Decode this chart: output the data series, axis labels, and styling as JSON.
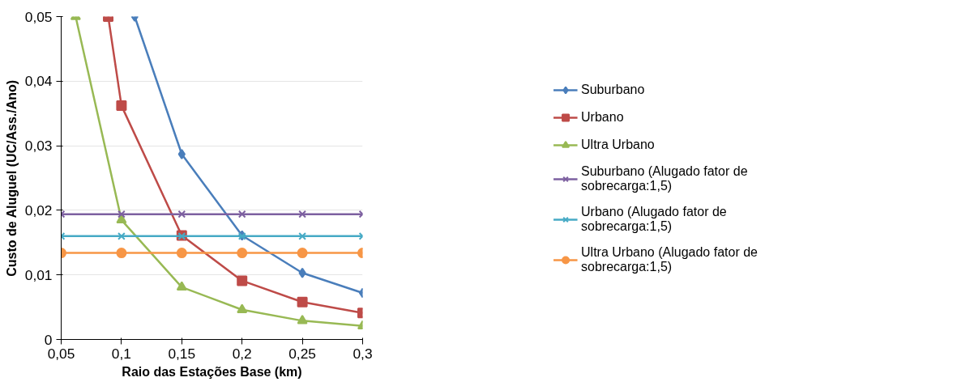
{
  "chart_data": {
    "type": "line",
    "xlabel": "Raio das Estações Base (km)",
    "ylabel": "Custo de Aluguel (UC/Ass./Ano)",
    "xlim": [
      0.05,
      0.3
    ],
    "ylim": [
      0,
      0.05
    ],
    "xticks": [
      {
        "value": 0.05,
        "label": "0,05"
      },
      {
        "value": 0.1,
        "label": "0,1"
      },
      {
        "value": 0.15,
        "label": "0,15"
      },
      {
        "value": 0.2,
        "label": "0,2"
      },
      {
        "value": 0.25,
        "label": "0,25"
      },
      {
        "value": 0.3,
        "label": "0,3"
      }
    ],
    "yticks": [
      0,
      {
        "value": 0.01,
        "label": "0,01"
      },
      {
        "value": 0.02,
        "label": "0,02"
      },
      {
        "value": 0.03,
        "label": "0,03"
      },
      {
        "value": 0.04,
        "label": "0,04"
      },
      {
        "value": 0.05,
        "label": "0,05"
      }
    ],
    "grid": "y",
    "legend": "right",
    "series": [
      {
        "name": "Suburbano",
        "color": "#4a7ebb",
        "marker": "diamond",
        "x": [
          0.111,
          0.15,
          0.2,
          0.25,
          0.3
        ],
        "values": [
          0.05,
          0.0287,
          0.0161,
          0.0103,
          0.0072
        ]
      },
      {
        "name": "Urbano",
        "color": "#be4b48",
        "marker": "square",
        "x": [
          0.089,
          0.1,
          0.15,
          0.2,
          0.25,
          0.3
        ],
        "values": [
          0.05,
          0.0362,
          0.0161,
          0.0091,
          0.0058,
          0.0041
        ]
      },
      {
        "name": "Ultra Urbano",
        "color": "#98b954",
        "marker": "triangle",
        "x": [
          0.062,
          0.1,
          0.15,
          0.2,
          0.25,
          0.3
        ],
        "values": [
          0.05,
          0.0185,
          0.0081,
          0.0046,
          0.0029,
          0.0021
        ]
      },
      {
        "name": "Suburbano (Alugado fator de sobrecarga:1,5)",
        "color": "#7d60a0",
        "marker": "cross",
        "x": [
          0.05,
          0.1,
          0.15,
          0.2,
          0.25,
          0.3
        ],
        "values": [
          0.0194,
          0.0194,
          0.0194,
          0.0194,
          0.0194,
          0.0194
        ]
      },
      {
        "name": "Urbano (Alugado fator de sobrecarga:1,5)",
        "color": "#46aac5",
        "marker": "cross",
        "x": [
          0.05,
          0.1,
          0.15,
          0.2,
          0.25,
          0.3
        ],
        "values": [
          0.016,
          0.016,
          0.016,
          0.016,
          0.016,
          0.016
        ]
      },
      {
        "name": "Ultra Urbano (Alugado fator de sobrecarga:1,5)",
        "color": "#f79646",
        "marker": "circle",
        "x": [
          0.05,
          0.1,
          0.15,
          0.2,
          0.25,
          0.3
        ],
        "values": [
          0.0134,
          0.0134,
          0.0134,
          0.0134,
          0.0134,
          0.0134
        ]
      }
    ]
  }
}
